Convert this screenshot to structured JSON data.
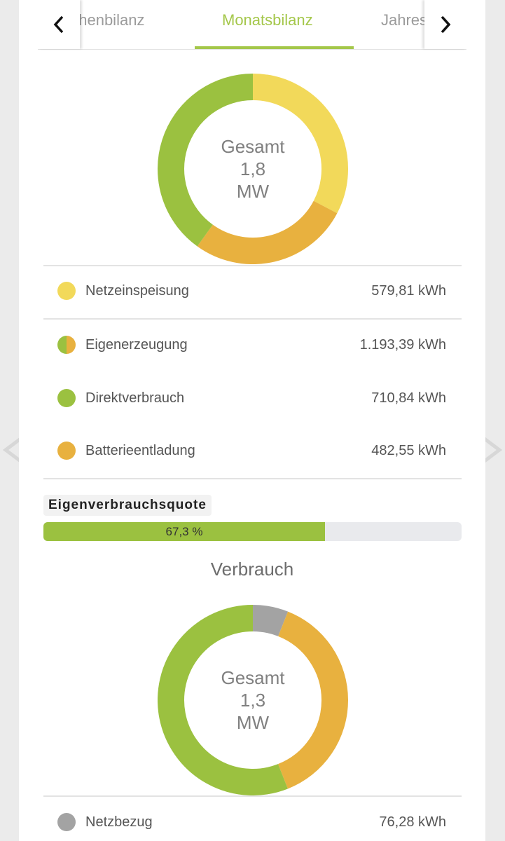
{
  "tabs": {
    "items": [
      {
        "label": "ochenbilanz",
        "active": false
      },
      {
        "label": "Monatsbilanz",
        "active": true
      },
      {
        "label": "Jahres",
        "active": false
      }
    ]
  },
  "production": {
    "center": {
      "line1": "Gesamt",
      "line2": "1,8",
      "line3": "MW"
    },
    "segments": [
      {
        "name": "Netzeinspeisung",
        "value_kwh": 579.81,
        "color": "#f2d95a"
      },
      {
        "name": "Batterieentladung",
        "value_kwh": 482.55,
        "color": "#e8b13f"
      },
      {
        "name": "Direktverbrauch",
        "value_kwh": 710.84,
        "color": "#9bc140"
      }
    ],
    "rows": [
      {
        "label": "Netzeinspeisung",
        "value": "579,81 kWh",
        "icon": "yellow-dot-icon"
      },
      {
        "label": "Eigenerzeugung",
        "value": "1.193,39 kWh",
        "icon": "split-green-orange-dot-icon"
      },
      {
        "label": "Direktverbrauch",
        "value": "710,84 kWh",
        "icon": "green-dot-icon"
      },
      {
        "label": "Batterieentladung",
        "value": "482,55 kWh",
        "icon": "orange-dot-icon"
      }
    ]
  },
  "quota": {
    "label": "Eigenverbrauchsquote",
    "value_text": "67,3 %",
    "fraction": 0.673
  },
  "consumption": {
    "title": "Verbrauch",
    "center": {
      "line1": "Gesamt",
      "line2": "1,3",
      "line3": "MW"
    },
    "segments": [
      {
        "name": "Netzbezug",
        "value_kwh": 76.28,
        "color": "#a3a3a3"
      },
      {
        "name": "Batterieentladung",
        "value_kwh": 482.55,
        "color": "#e8b13f"
      },
      {
        "name": "Direktverbrauch",
        "value_kwh": 710.84,
        "color": "#9bc140"
      }
    ],
    "rows": [
      {
        "label": "Netzbezug",
        "value": "76,28 kWh",
        "icon": "gray-dot-icon"
      }
    ]
  },
  "colors": {
    "accent": "#a4c74a",
    "yellow": "#f2d95a",
    "orange": "#e8b13f",
    "green": "#9bc140",
    "gray": "#a3a3a3"
  }
}
